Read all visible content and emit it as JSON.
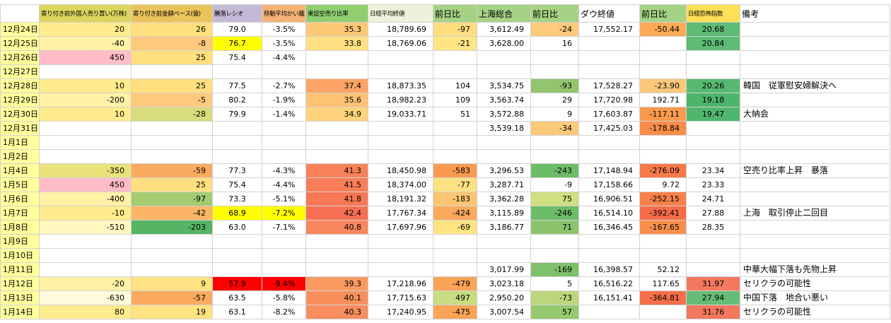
{
  "sheet": {
    "grid_color": "#d2d2d2",
    "date_col_bg": "#ffff9c",
    "highlight_yellow": "#ffff00",
    "highlight_red": "#ff0000",
    "headers": [
      {
        "id": "date",
        "label": "",
        "bg": "#ffffff",
        "size": "small"
      },
      {
        "id": "pre-open-foreign-trades",
        "label": "寄り付き前外国人売り買い(万株)",
        "bg": "#ddd65e",
        "size": "small"
      },
      {
        "id": "pre-open-amount-basis",
        "label": "寄り付き前金額ベース(億)",
        "bg": "#eac35b",
        "size": "small"
      },
      {
        "id": "advance-decline-ratio",
        "label": "騰落レシオ",
        "bg": "#c4bad6",
        "size": "small"
      },
      {
        "id": "moving-average-divergence",
        "label": "移動平均かい離",
        "bg": "#f5b275",
        "size": "small"
      },
      {
        "id": "tse-short-selling-ratio",
        "label": "東証空売り比率",
        "bg": "#90ce70",
        "size": "small"
      },
      {
        "id": "nikkei-close",
        "label": "日経平均終値",
        "bg": "#eef2da",
        "size": "small"
      },
      {
        "id": "nikkei-day-change",
        "label": "前日比",
        "bg": "#a6d285",
        "size": "large"
      },
      {
        "id": "shanghai-composite",
        "label": "上海総合",
        "bg": "#a6d285",
        "size": "large"
      },
      {
        "id": "shanghai-day-change",
        "label": "前日比",
        "bg": "#a6d285",
        "size": "large"
      },
      {
        "id": "dow-close",
        "label": "ダウ終値",
        "bg": "#ffffff",
        "size": "large"
      },
      {
        "id": "dow-day-change",
        "label": "前日比",
        "bg": "#a6d285",
        "size": "large"
      },
      {
        "id": "nikkei-fear-index",
        "label": "日経恐怖指数",
        "bg": "#ffdf55",
        "size": "small"
      },
      {
        "id": "remarks",
        "label": "備考",
        "bg": "#ffffff",
        "size": "large"
      }
    ],
    "rows": [
      {
        "date": "12月24日",
        "cells": [
          [
            "20",
            "#ffec8d"
          ],
          [
            "26",
            "#ffdf7e"
          ],
          "79.0",
          "-3.5%",
          [
            "35.3",
            "#fdc976"
          ],
          "18,789.69",
          [
            "-97",
            "#fede7f"
          ],
          "3,612.49",
          [
            "-24",
            "#fdc97a"
          ],
          "17,552.17",
          [
            "-50.44",
            "#fbaa55"
          ],
          [
            "20.68",
            "#5dbb74"
          ]
        ],
        "remark": ""
      },
      {
        "date": "12月25日",
        "cells": [
          [
            "-40",
            "#fff1a5"
          ],
          [
            "-8",
            "#fdc97c"
          ],
          [
            "76.7",
            "#ffff00"
          ],
          "-3.5%",
          [
            "33.8",
            "#ffdf81"
          ],
          "18,769.06",
          [
            "-21",
            "#ffe584"
          ],
          "3,628.00",
          "16",
          "",
          "",
          [
            "20.84",
            "#5dbb74"
          ]
        ],
        "remark": ""
      },
      {
        "date": "12月26日",
        "cells": [
          [
            "450",
            "#ffbcc8"
          ],
          [
            "25",
            "#ffdf7e"
          ],
          "75.4",
          "-4.4%",
          "",
          "",
          "",
          "",
          "",
          "",
          "",
          ""
        ],
        "remark": ""
      },
      {
        "date": "12月27日",
        "cells": [
          "",
          "",
          "",
          "",
          "",
          "",
          "",
          "",
          "",
          "",
          "",
          ""
        ],
        "remark": ""
      },
      {
        "date": "12月28日",
        "cells": [
          [
            "10",
            "#ffec8d"
          ],
          [
            "25",
            "#ffdf7e"
          ],
          "77.5",
          "-2.7%",
          [
            "37.4",
            "#fba465"
          ],
          "18,873.35",
          "104",
          "3,534.75",
          [
            "-93",
            "#92c56e"
          ],
          "17,528.27",
          [
            "-23.90",
            "#fdc87c"
          ],
          [
            "20.26",
            "#57b971"
          ]
        ],
        "remark": "韓国　従軍慰安婦解決へ"
      },
      {
        "date": "12月29日",
        "cells": [
          [
            "-200",
            "#fff1a5"
          ],
          [
            "-5",
            "#fdc97c"
          ],
          "80.2",
          "-1.9%",
          [
            "35.6",
            "#fdc273"
          ],
          "18,982.23",
          "109",
          "3,563.74",
          "29",
          "17,720.98",
          "192.71",
          [
            "19.18",
            "#4db56b"
          ]
        ],
        "remark": ""
      },
      {
        "date": "12月30日",
        "cells": [
          [
            "10",
            "#ffec8d"
          ],
          [
            "-28",
            "#d9dc7d"
          ],
          "79.9",
          "-1.4%",
          [
            "34.9",
            "#fed37b"
          ],
          "19,033.71",
          "51",
          "3,572.88",
          "9",
          "17,603.87",
          [
            "-117.11",
            "#fa9a4e"
          ],
          [
            "19.47",
            "#50b66d"
          ]
        ],
        "remark": "大納会"
      },
      {
        "date": "12月31日",
        "cells": [
          "",
          "",
          "",
          "",
          "",
          "",
          "",
          "3,539.18",
          [
            "-34",
            "#fdc97a"
          ],
          "17,425.03",
          [
            "-178.84",
            "#f98c49"
          ],
          ""
        ],
        "remark": ""
      },
      {
        "date": "1月1日",
        "cells": [
          "",
          "",
          "",
          "",
          "",
          "",
          "",
          "",
          "",
          "",
          "",
          ""
        ],
        "remark": ""
      },
      {
        "date": "1月2日",
        "cells": [
          "",
          "",
          "",
          "",
          "",
          "",
          "",
          "",
          "",
          "",
          "",
          ""
        ],
        "remark": ""
      },
      {
        "date": "1月4日",
        "cells": [
          [
            "-350",
            "#e9e27b"
          ],
          [
            "-59",
            "#fbab60"
          ],
          "77.3",
          "-4.3%",
          [
            "41.3",
            "#f9815a"
          ],
          "18,450.98",
          [
            "-583",
            "#fa9a51"
          ],
          "3,296.53",
          [
            "-243",
            "#6cbc68"
          ],
          "17,148.94",
          [
            "-276.09",
            "#f87a4a"
          ],
          "23.34"
        ],
        "remark": "空売り比率上昇　暴落"
      },
      {
        "date": "1月5日",
        "cells": [
          [
            "450",
            "#ffbcc8"
          ],
          [
            "25",
            "#ffdf7e"
          ],
          "75.4",
          "-4.4%",
          [
            "41.5",
            "#f87d58"
          ],
          "18,374.00",
          [
            "-77",
            "#fee281"
          ],
          "3,287.71",
          "-9",
          "17,158.66",
          "9.72",
          "23.33"
        ],
        "remark": ""
      },
      {
        "date": "1月6日",
        "cells": [
          [
            "-400",
            "#fff1a5"
          ],
          [
            "-97",
            "#a3cc70"
          ],
          "73.3",
          "-5.1%",
          [
            "41.8",
            "#f87856"
          ],
          "18,191.32",
          [
            "-183",
            "#fdc571"
          ],
          "3,362.28",
          [
            "75",
            "#cfdf82"
          ],
          "16,906.51",
          [
            "-252.15",
            "#f8814b"
          ],
          "24.71"
        ],
        "remark": ""
      },
      {
        "date": "1月7日",
        "cells": [
          [
            "-10",
            "#ffec8d"
          ],
          [
            "-42",
            "#fcb566"
          ],
          [
            "68.9",
            "#ffff00"
          ],
          [
            "-7.2%",
            "#ffff00"
          ],
          [
            "42.4",
            "#f77053"
          ],
          "17,767.34",
          [
            "-424",
            "#fbaa5c"
          ],
          "3,115.89",
          [
            "-246",
            "#6cbc68"
          ],
          "16,514.10",
          [
            "-392.41",
            "#f76b48"
          ],
          "27.88"
        ],
        "remark": "上海　取引停止二回目"
      },
      {
        "date": "1月8日",
        "cells": [
          [
            "-510",
            "#fff6c0"
          ],
          [
            "-203",
            "#55b565"
          ],
          "63.0",
          "-7.1%",
          [
            "40.8",
            "#f9865c"
          ],
          "17,697.96",
          [
            "-69",
            "#fee482"
          ],
          "3,186.77",
          [
            "71",
            "#8cc46d"
          ],
          "16,346.45",
          [
            "-167.65",
            "#f98f4c"
          ],
          "28.35"
        ],
        "remark": ""
      },
      {
        "date": "1月9日",
        "cells": [
          "",
          "",
          "",
          "",
          "",
          "",
          "",
          "",
          "",
          "",
          "",
          ""
        ],
        "remark": ""
      },
      {
        "date": "1月10日",
        "cells": [
          "",
          "",
          "",
          "",
          "",
          "",
          "",
          "",
          "",
          "",
          "",
          ""
        ],
        "remark": ""
      },
      {
        "date": "1月11日",
        "cells": [
          "",
          "",
          "",
          "",
          "",
          "",
          "",
          "3,017.99",
          [
            "-169",
            "#7fc06a"
          ],
          "16,398.57",
          "52.12",
          ""
        ],
        "remark": "中華大幅下落も先物上昇"
      },
      {
        "date": "1月12日",
        "cells": [
          [
            "-20",
            "#fff1a5"
          ],
          [
            "9",
            "#ffe282"
          ],
          [
            "57.9",
            "#ff0000"
          ],
          [
            "-9.4%",
            "#ff0000"
          ],
          [
            "39.3",
            "#fa9a61"
          ],
          "17,218.96",
          [
            "-479",
            "#fba356"
          ],
          "3,023.18",
          "5",
          "16,516.22",
          "117.65",
          [
            "31.97",
            "#f4785e"
          ]
        ],
        "remark": "セリクラの可能性"
      },
      {
        "date": "1月13日",
        "cells": [
          [
            "-630",
            "#fffbdc"
          ],
          [
            "-57",
            "#fbab60"
          ],
          "63.5",
          "-5.8%",
          [
            "40.1",
            "#f9905c"
          ],
          "17,715.63",
          [
            "497",
            "#c8dc81"
          ],
          "2,950.20",
          [
            "-73",
            "#bcd77b"
          ],
          "16,151.41",
          [
            "-364.81",
            "#f77049"
          ],
          [
            "27.94",
            "#66bd77"
          ]
        ],
        "remark": "中国下落　地合い悪い"
      },
      {
        "date": "1月14日",
        "cells": [
          [
            "80",
            "#ffec8d"
          ],
          [
            "19",
            "#ffe282"
          ],
          "63.1",
          "-8.2%",
          [
            "40.3",
            "#f98d5e"
          ],
          "17,240.95",
          [
            "-475",
            "#fba457"
          ],
          "3,007.54",
          [
            "57",
            "#94c96f"
          ],
          "",
          "",
          [
            "31.76",
            "#f4785e"
          ]
        ],
        "remark": "セリクラの可能性"
      }
    ]
  }
}
